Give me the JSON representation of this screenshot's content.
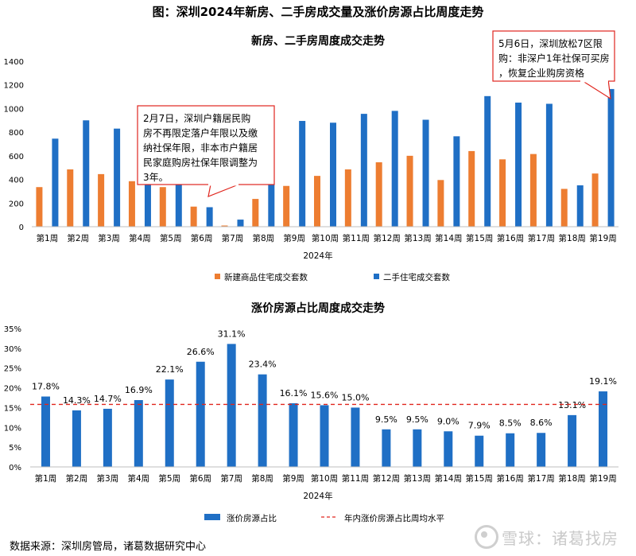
{
  "page_title": "图：深圳2024年新房、二手房成交量及涨价房源占比周度走势",
  "colors": {
    "orange": "#ED7D31",
    "blue": "#1F6FC5",
    "red_line": "#E0261E",
    "annotation_border": "#E0261E"
  },
  "chart_data": [
    {
      "type": "bar",
      "title": "新房、二手房周度成交走势",
      "xlabel": "2024年",
      "ylabel": "",
      "ylim": [
        0,
        1400
      ],
      "yticks": [
        "0",
        "200",
        "400",
        "600",
        "800",
        "1000",
        "1200",
        "1400"
      ],
      "categories": [
        "第1周",
        "第2周",
        "第3周",
        "第4周",
        "第5周",
        "第6周",
        "第7周",
        "第8周",
        "第9周",
        "第10周",
        "第11周",
        "第12周",
        "第13周",
        "第14周",
        "第15周",
        "第16周",
        "第17周",
        "第18周",
        "第19周"
      ],
      "series": [
        {
          "name": "新建商品住宅成交套数",
          "color": "#ED7D31",
          "values": [
            335,
            485,
            445,
            385,
            335,
            170,
            10,
            235,
            345,
            430,
            485,
            545,
            600,
            395,
            640,
            570,
            615,
            320,
            450
          ]
        },
        {
          "name": "二手住宅成交套数",
          "color": "#1F6FC5",
          "values": [
            745,
            900,
            830,
            705,
            560,
            165,
            60,
            665,
            895,
            880,
            955,
            980,
            905,
            765,
            1105,
            1050,
            1040,
            350,
            1165
          ]
        }
      ],
      "legend_position": "bottom",
      "annotations": [
        {
          "text": "2月7日，深圳户籍居民购房不再限定落户年限以及缴纳社保年限，非本市户籍居民家庭购房社保年限调整为3年。",
          "target_week": "第6周"
        },
        {
          "text": "5月6日，深圳放松7区限购：非深户1年社保可买房，恢复企业购房资格",
          "target_week": "第19周"
        }
      ]
    },
    {
      "type": "bar",
      "title": "涨价房源占比周度成交走势",
      "xlabel": "2024年",
      "ylabel": "",
      "ylim": [
        0,
        35
      ],
      "yticks": [
        "0%",
        "5%",
        "10%",
        "15%",
        "20%",
        "25%",
        "30%",
        "35%"
      ],
      "categories": [
        "第1周",
        "第2周",
        "第3周",
        "第4周",
        "第5周",
        "第6周",
        "第7周",
        "第8周",
        "第9周",
        "第10周",
        "第11周",
        "第12周",
        "第13周",
        "第14周",
        "第15周",
        "第16周",
        "第17周",
        "第18周",
        "第19周"
      ],
      "series": [
        {
          "name": "涨价房源占比",
          "color": "#1F6FC5",
          "values": [
            17.8,
            14.3,
            14.7,
            16.9,
            22.1,
            26.6,
            31.1,
            23.4,
            16.1,
            15.6,
            15.0,
            9.5,
            9.5,
            9.0,
            7.9,
            8.5,
            8.6,
            13.1,
            19.1
          ]
        }
      ],
      "value_labels": [
        "17.8%",
        "14.3%",
        "14.7%",
        "16.9%",
        "22.1%",
        "26.6%",
        "31.1%",
        "23.4%",
        "16.1%",
        "15.6%",
        "15.0%",
        "9.5%",
        "9.5%",
        "9.0%",
        "7.9%",
        "8.5%",
        "8.6%",
        "13.1%",
        "19.1%"
      ],
      "reference_line": {
        "name": "年内涨价房源占比周均水平",
        "value": 15.8,
        "color": "#E0261E",
        "style": "dashed"
      },
      "legend_position": "bottom"
    }
  ],
  "footer": {
    "source": "数据来源：深圳房管局，诸葛数据研究中心",
    "watermark": "雪球：诸葛找房"
  }
}
